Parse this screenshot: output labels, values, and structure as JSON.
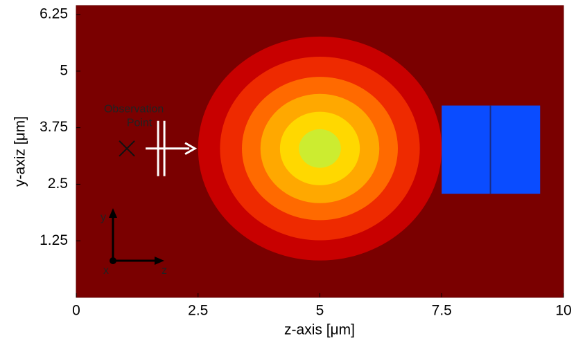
{
  "chart_data": {
    "type": "contour",
    "xlabel": "z-axis [μm]",
    "ylabel": "y-axiz [μm]",
    "xlim": [
      0,
      10
    ],
    "ylim": [
      0,
      6.45
    ],
    "xticks": [
      0,
      2.5,
      5,
      7.5,
      10
    ],
    "yticks": [
      1.25,
      2.5,
      3.75,
      5,
      6.25
    ],
    "background": "#7a0000",
    "center": [
      5,
      3.29
    ],
    "contours": [
      {
        "radius": 2.5,
        "color": "#c80000"
      },
      {
        "radius": 2.05,
        "color": "#ee2a00"
      },
      {
        "radius": 1.6,
        "color": "#ff6a00"
      },
      {
        "radius": 1.22,
        "color": "#ffa800"
      },
      {
        "radius": 0.82,
        "color": "#ffd800"
      },
      {
        "radius": 0.43,
        "color": "#ccec30"
      }
    ],
    "block": {
      "x": [
        7.5,
        9.52
      ],
      "y": [
        2.29,
        4.24
      ],
      "divider": 8.5,
      "color": "#0a4cff"
    },
    "observation": {
      "label": "Observation\nPoint",
      "x": 1.04,
      "y": 3.29
    },
    "inset_labels": {
      "y": "y",
      "x": "x",
      "z": "z"
    }
  }
}
